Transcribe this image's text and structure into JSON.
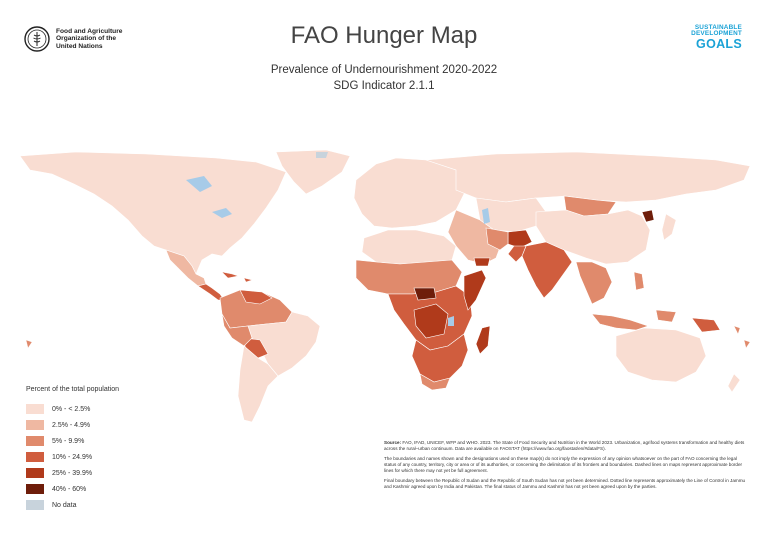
{
  "header": {
    "org_name": "Food and Agriculture Organization of the United Nations",
    "title": "FAO Hunger Map",
    "subtitle": "Prevalence of Undernourishment 2020-2022",
    "indicator": "SDG Indicator 2.1.1",
    "sdg_line1": "SUSTAINABLE",
    "sdg_line2": "DEVELOPMENT",
    "sdg_line3": "GOALS"
  },
  "legend": {
    "title": "Percent of the total population",
    "items": [
      {
        "label": "0% - < 2.5%",
        "color": "#f9ddd2"
      },
      {
        "label": "2.5% - 4.9%",
        "color": "#efb8a2"
      },
      {
        "label": "5% - 9.9%",
        "color": "#e08a6c"
      },
      {
        "label": "10% - 24.9%",
        "color": "#d05d3e"
      },
      {
        "label": "25% - 39.9%",
        "color": "#b03a1b"
      },
      {
        "label": "40% - 60%",
        "color": "#6e1d0a"
      },
      {
        "label": "No data",
        "color": "#c8d3dc"
      }
    ]
  },
  "notes": {
    "source_label": "Source:",
    "source_text": "FAO, IFAD, UNICEF, WFP and WHO. 2023. The State of Food Security and Nutrition in the World 2023. Urbanization, agrifood systems transformation and healthy diets across the rural–urban continuum.",
    "data_text": "Data are available on FAOSTAT (https://www.fao.org/faostat/en/#data/FS).",
    "disclaimer": "The boundaries and names shown and the designations used on these map(s) do not imply the expression of any opinion whatsoever on the part of FAO concerning the legal status of any country, territory, city or area or of its authorities, or concerning the delimitation of its frontiers and boundaries. Dashed lines on maps represent approximate border lines for which there may not yet be full agreement.",
    "sudan_note": "Final boundary between the Republic of Sudan and the Republic of South Sudan has not yet been determined. Dotted line represents approximately the Line of Control in Jammu and Kashmir agreed upon by India and Pakistan. The final status of Jammu and Kashmir has not yet been agreed upon by the parties."
  },
  "map_colors": {
    "low": "#f9ddd2",
    "low_mid": "#efb8a2",
    "mid": "#e08a6c",
    "high": "#d05d3e",
    "very_high": "#b03a1b",
    "extreme": "#6e1d0a",
    "water": "#a7cbe8",
    "no_data": "#c8d3dc"
  }
}
